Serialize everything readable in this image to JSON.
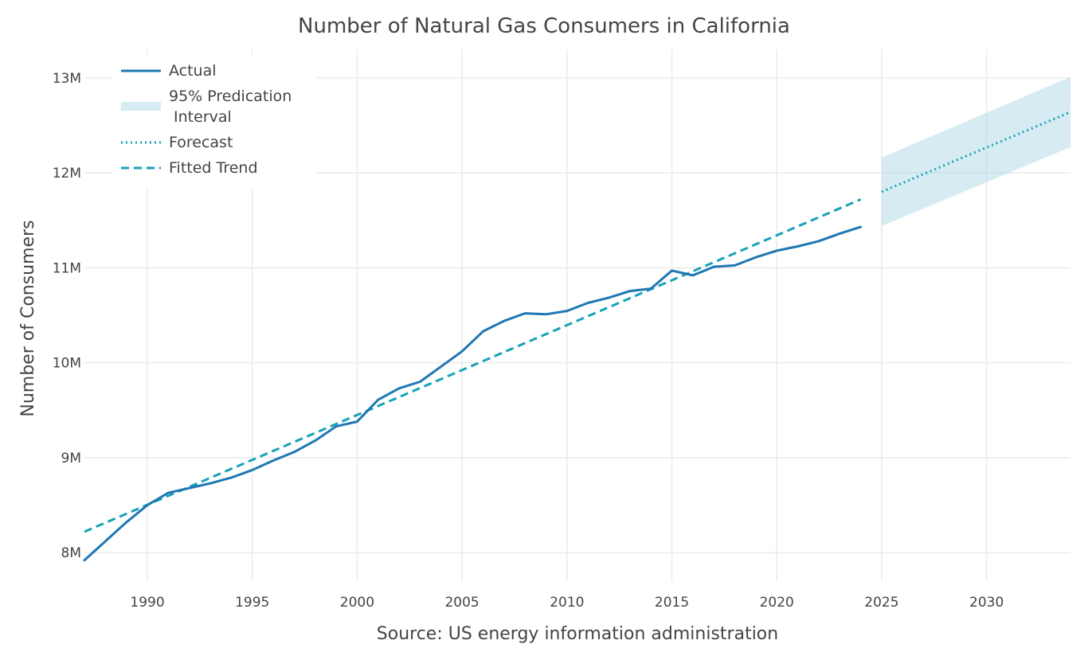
{
  "chart_data": {
    "type": "line",
    "title": "Number of Natural Gas Consumers in California",
    "xlabel": "Source: US energy information administration",
    "ylabel": "Number of Consumers",
    "xlim": [
      1987,
      2034
    ],
    "ylim": [
      7700000,
      13300000
    ],
    "x_ticks": [
      1990,
      1995,
      2000,
      2005,
      2010,
      2015,
      2020,
      2025,
      2030
    ],
    "y_ticks": [
      {
        "value": 8000000,
        "label": "8M"
      },
      {
        "value": 9000000,
        "label": "9M"
      },
      {
        "value": 10000000,
        "label": "10M"
      },
      {
        "value": 11000000,
        "label": "11M"
      },
      {
        "value": 12000000,
        "label": "12M"
      },
      {
        "value": 13000000,
        "label": "13M"
      }
    ],
    "grid": true,
    "legend": {
      "position": "top-left",
      "entries": [
        {
          "key": "actual",
          "label": "Actual"
        },
        {
          "key": "interval",
          "label_lines": [
            "95% Predication",
            " Interval"
          ]
        },
        {
          "key": "forecast",
          "label": "Forecast"
        },
        {
          "key": "trend",
          "label": "Fitted Trend"
        }
      ]
    },
    "series": [
      {
        "name": "Actual",
        "key": "actual",
        "style": "solid",
        "color": "#1f77b4",
        "x": [
          1987,
          1988,
          1989,
          1990,
          1991,
          1992,
          1993,
          1994,
          1995,
          1996,
          1997,
          1998,
          1999,
          2000,
          2001,
          2002,
          2003,
          2004,
          2005,
          2006,
          2007,
          2008,
          2009,
          2010,
          2011,
          2012,
          2013,
          2014,
          2015,
          2016,
          2017,
          2018,
          2019,
          2020,
          2021,
          2022,
          2023,
          2024
        ],
        "y": [
          7920000,
          8120000,
          8320000,
          8500000,
          8630000,
          8680000,
          8730000,
          8790000,
          8870000,
          8970000,
          9060000,
          9180000,
          9330000,
          9380000,
          9610000,
          9730000,
          9800000,
          9960000,
          10120000,
          10330000,
          10440000,
          10520000,
          10510000,
          10545000,
          10630000,
          10685000,
          10755000,
          10780000,
          10970000,
          10920000,
          11010000,
          11025000,
          11110000,
          11180000,
          11225000,
          11280000,
          11360000,
          11430000
        ]
      },
      {
        "name": "Fitted Trend",
        "key": "trend",
        "style": "dash",
        "color": "#17a2b8",
        "x": [
          1987,
          2024
        ],
        "y": [
          8220000,
          11720000
        ]
      },
      {
        "name": "Forecast",
        "key": "forecast",
        "style": "dot",
        "color": "#17a2b8",
        "x": [
          2025,
          2034
        ],
        "y": [
          11800000,
          12640000
        ]
      }
    ],
    "interval": {
      "name": "95% Predication Interval",
      "color": "#add8e6",
      "x": [
        2025,
        2034
      ],
      "lower": [
        11440000,
        12270000
      ],
      "upper": [
        12160000,
        13010000
      ]
    }
  }
}
